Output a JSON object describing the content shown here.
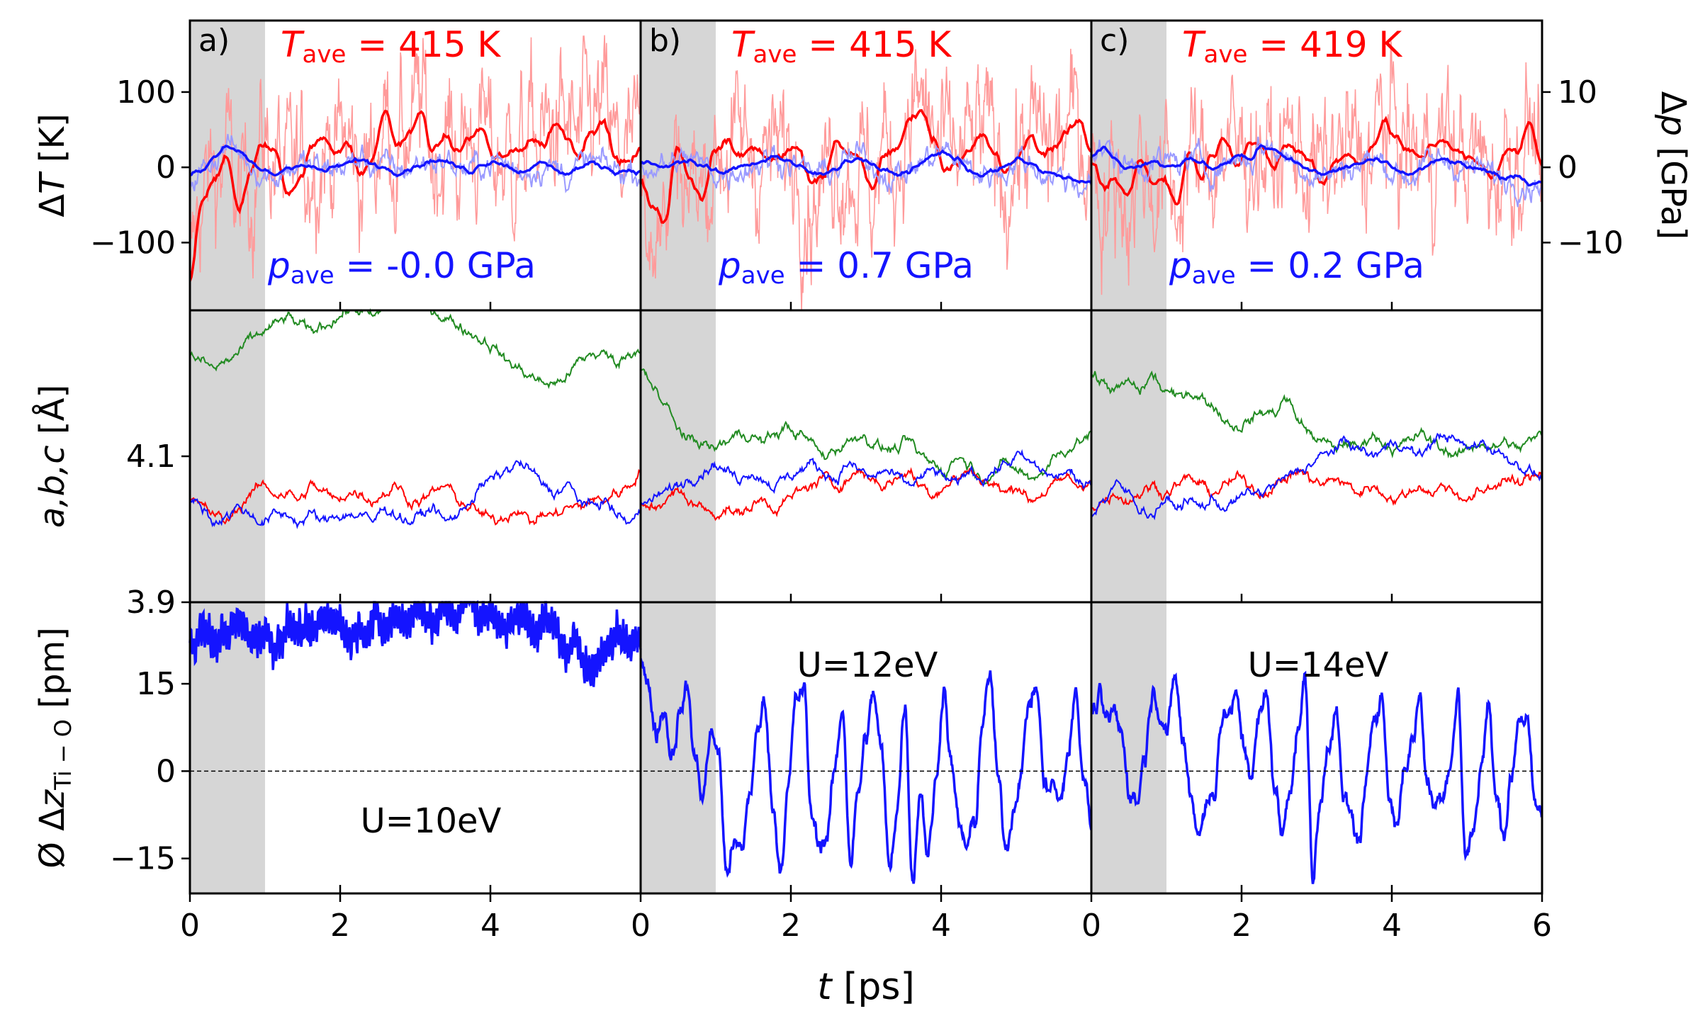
{
  "chart_data": {
    "type": "line",
    "description_layout": "3x3 grid of panels sharing x axis",
    "x_axis": {
      "label": "t [ps]",
      "label_italic_part": "t",
      "label_rest": " [ps]",
      "range": [
        0,
        6
      ],
      "ticks": [
        "0",
        "2",
        "4",
        "0",
        "2",
        "4",
        "0",
        "2",
        "4",
        "6"
      ]
    },
    "shaded_region": {
      "x": [
        0,
        1
      ],
      "color": "#d6d6d6"
    },
    "rows": [
      {
        "id": "temperature_pressure",
        "ylabel_left": "ΔT [K]",
        "ylabel_left_parts": [
          "Δ",
          "T",
          " [K]"
        ],
        "ylabel_right": "Δp [GPa]",
        "ylabel_right_parts": [
          "Δ",
          "p",
          " [GPa]"
        ],
        "ylim_left": [
          -190,
          195
        ],
        "yticks_left": [
          {
            "v": 100,
            "label": "100"
          },
          {
            "v": 0,
            "label": "0"
          },
          {
            "v": -100,
            "label": "−100"
          }
        ],
        "ylim_right": [
          -19,
          19.5
        ],
        "yticks_right": [
          {
            "v": 10,
            "label": "10"
          },
          {
            "v": 0,
            "label": "0"
          },
          {
            "v": -10,
            "label": "−10"
          }
        ]
      },
      {
        "id": "lattice",
        "ylabel": "a,b,c [Å]",
        "ylim": [
          3.9,
          4.3
        ],
        "yticks": [
          {
            "v": 4.1,
            "label": "4.1"
          },
          {
            "v": 3.9,
            "label": "3.9"
          }
        ]
      },
      {
        "id": "displacement",
        "ylabel": "Ø Δz_Ti−O [pm]",
        "ylabel_parts": [
          "Ø Δ",
          "z",
          "Ti − O",
          " [pm]"
        ],
        "ylim": [
          -21,
          29
        ],
        "yticks": [
          {
            "v": 15,
            "label": "15"
          },
          {
            "v": 0,
            "label": "0"
          },
          {
            "v": -15,
            "label": "−15"
          }
        ],
        "zero_line": 0
      }
    ],
    "panels": [
      {
        "tag": "a)",
        "T_ave": "415 K",
        "p_ave": "-0.0 GPa",
        "U_label": "U=10eV",
        "series": {
          "dT_smooth": [
            -150,
            -40,
            -10,
            10,
            -55,
            -5,
            30,
            20,
            -30,
            -15,
            25,
            40,
            25,
            30,
            -10,
            10,
            75,
            30,
            45,
            70,
            20,
            40,
            20,
            40,
            50,
            10,
            15,
            20,
            40,
            30,
            60,
            40,
            20,
            55,
            60,
            10,
            5,
            20
          ],
          "dp_smooth": [
            -1,
            -0.5,
            1.5,
            3,
            2,
            0.5,
            -0.5,
            -1,
            0,
            0.5,
            0,
            -0.5,
            0,
            0.5,
            1,
            0.5,
            0,
            -0.5,
            0,
            0.5,
            1,
            0.8,
            0,
            -0.5,
            0.5,
            1,
            0.3,
            -0.5,
            0,
            0.5,
            -0.3,
            -0.8,
            0,
            0.5,
            0,
            -0.5,
            -0.3,
            -0.5
          ],
          "a": [
            4.04,
            4.03,
            4.02,
            4.01,
            4.03,
            4.05,
            4.06,
            4.05,
            4.05,
            4.04,
            4.06,
            4.05,
            4.04,
            4.05,
            4.05,
            4.04,
            4.05,
            4.06,
            4.04,
            4.04,
            4.05,
            4.06,
            4.04,
            4.03,
            4.02,
            4.01,
            4.02,
            4.03,
            4.01,
            4.02,
            4.02,
            4.03,
            4.03,
            4.04,
            4.04,
            4.05,
            4.06,
            4.08
          ],
          "b": [
            4.04,
            4.03,
            4.01,
            4.02,
            4.03,
            4.02,
            4.01,
            4.02,
            4.02,
            4.01,
            4.02,
            4.01,
            4.02,
            4.02,
            4.02,
            4.01,
            4.03,
            4.02,
            4.01,
            4.02,
            4.03,
            4.01,
            4.02,
            4.04,
            4.06,
            4.07,
            4.08,
            4.09,
            4.08,
            4.06,
            4.05,
            4.06,
            4.04,
            4.03,
            4.04,
            4.02,
            4.01,
            4.02
          ],
          "c": [
            4.24,
            4.23,
            4.22,
            4.23,
            4.24,
            4.26,
            4.27,
            4.28,
            4.29,
            4.28,
            4.27,
            4.28,
            4.29,
            4.3,
            4.3,
            4.29,
            4.3,
            4.31,
            4.32,
            4.31,
            4.3,
            4.29,
            4.28,
            4.27,
            4.26,
            4.25,
            4.23,
            4.22,
            4.21,
            4.2,
            4.2,
            4.21,
            4.23,
            4.24,
            4.24,
            4.23,
            4.24,
            4.25
          ],
          "dz": [
            23,
            24,
            22,
            24,
            25,
            23,
            24,
            22,
            25,
            24,
            23,
            26,
            27,
            23,
            25,
            26,
            24,
            27,
            26,
            29,
            25,
            28,
            27,
            30,
            26,
            28,
            24,
            27,
            25,
            26,
            24,
            20,
            22,
            17,
            21,
            24,
            22,
            23
          ]
        }
      },
      {
        "tag": "b)",
        "T_ave": "415 K",
        "p_ave": "0.7 GPa",
        "U_label": "U=12eV",
        "series": {
          "dT_smooth": [
            -20,
            -50,
            -70,
            30,
            -10,
            -40,
            20,
            35,
            15,
            25,
            20,
            10,
            20,
            25,
            -20,
            -15,
            35,
            15,
            10,
            -30,
            20,
            20,
            60,
            80,
            40,
            0,
            10,
            20,
            40,
            20,
            -10,
            15,
            40,
            20,
            30,
            45,
            60,
            20
          ],
          "dp_smooth": [
            0.5,
            0.3,
            0,
            0.8,
            1,
            0.2,
            -0.5,
            -0.8,
            0,
            0.5,
            1,
            1.5,
            1,
            0,
            -0.8,
            -1,
            0,
            1,
            1.2,
            0.5,
            -0.5,
            -1,
            -0.5,
            0.5,
            1.5,
            2,
            1,
            -0.3,
            -1,
            -0.5,
            0,
            1,
            0.5,
            -0.5,
            -1,
            -1.5,
            -2,
            -2.2
          ],
          "a": [
            4.03,
            4.03,
            4.04,
            4.05,
            4.04,
            4.03,
            4.02,
            4.03,
            4.02,
            4.03,
            4.04,
            4.03,
            4.04,
            4.05,
            4.06,
            4.07,
            4.06,
            4.07,
            4.08,
            4.07,
            4.06,
            4.07,
            4.08,
            4.06,
            4.05,
            4.06,
            4.07,
            4.08,
            4.07,
            4.06,
            4.05,
            4.06,
            4.04,
            4.05,
            4.06,
            4.07,
            4.06,
            4.07
          ],
          "b": [
            4.03,
            4.04,
            4.05,
            4.06,
            4.07,
            4.08,
            4.09,
            4.08,
            4.07,
            4.08,
            4.07,
            4.06,
            4.07,
            4.08,
            4.09,
            4.08,
            4.07,
            4.09,
            4.08,
            4.07,
            4.08,
            4.07,
            4.06,
            4.07,
            4.08,
            4.07,
            4.06,
            4.08,
            4.07,
            4.08,
            4.09,
            4.1,
            4.09,
            4.08,
            4.07,
            4.08,
            4.06,
            4.07
          ],
          "c": [
            4.22,
            4.2,
            4.17,
            4.14,
            4.12,
            4.12,
            4.11,
            4.12,
            4.13,
            4.13,
            4.12,
            4.13,
            4.14,
            4.13,
            4.12,
            4.1,
            4.11,
            4.12,
            4.13,
            4.12,
            4.11,
            4.11,
            4.12,
            4.1,
            4.09,
            4.08,
            4.1,
            4.09,
            4.07,
            4.08,
            4.09,
            4.08,
            4.07,
            4.08,
            4.1,
            4.11,
            4.12,
            4.13
          ]
        },
        "dz_points": [
          20,
          14,
          7,
          11,
          3,
          10,
          14,
          2,
          -4,
          6,
          4,
          -17,
          -13,
          -14,
          -4,
          6,
          12,
          -6,
          -16,
          -3,
          12,
          14,
          -8,
          -12,
          -11,
          0,
          11,
          -15,
          -4,
          6,
          13,
          3,
          -17,
          -6,
          12,
          -18,
          -3,
          -14,
          -2,
          15,
          1,
          -10,
          -13,
          -9,
          9,
          16,
          -2,
          -13,
          -6,
          1,
          12,
          14,
          -3,
          -2,
          -6,
          3,
          13,
          -1,
          -8
        ]
      },
      {
        "tag": "c)",
        "T_ave": "419 K",
        "p_ave": "0.2 GPa",
        "U_label": "U=14eV",
        "series": {
          "dT_smooth": [
            0,
            -30,
            -20,
            -40,
            10,
            -20,
            -10,
            -50,
            20,
            -10,
            20,
            40,
            10,
            35,
            20,
            0,
            30,
            20,
            10,
            -20,
            10,
            15,
            5,
            30,
            60,
            40,
            20,
            10,
            30,
            40,
            20,
            10,
            0,
            -10,
            20,
            20,
            60,
            10
          ],
          "dp_smooth": [
            1.5,
            2.5,
            1,
            0,
            0.5,
            1,
            0.3,
            0.5,
            1,
            0.5,
            0,
            0.5,
            1.5,
            1,
            3,
            2.5,
            1.5,
            0.5,
            -0.5,
            -1,
            -0.5,
            0,
            0.5,
            1,
            0.5,
            -0.5,
            -1,
            -0.3,
            0.5,
            1,
            0.5,
            0,
            -0.5,
            -1,
            -1.5,
            -1,
            -2,
            -1.8
          ]
        },
        "dz_points": [
          9,
          12,
          8,
          10,
          6,
          -3,
          -5,
          3,
          14,
          11,
          7,
          16,
          5,
          -4,
          -10,
          -6,
          -4,
          9,
          10,
          12,
          4,
          0,
          9,
          13,
          -3,
          -11,
          -2,
          7,
          15,
          -18,
          -6,
          5,
          11,
          -5,
          -8,
          -12,
          -3,
          10,
          14,
          -5,
          -9,
          1,
          5,
          13,
          -2,
          -6,
          -3,
          2,
          13,
          -15,
          -10,
          1,
          11,
          -5,
          -10,
          -1,
          10,
          9,
          -6,
          -8
        ]
      }
    ]
  },
  "colors": {
    "temperature": "#ff0000",
    "temperature_raw": "#ff9a9a",
    "pressure": "#1414ff",
    "pressure_band": "#9a9aff",
    "lattice_a": "#ff0000",
    "lattice_b": "#1414ff",
    "lattice_c": "#228b22",
    "displacement": "#1414ff"
  }
}
